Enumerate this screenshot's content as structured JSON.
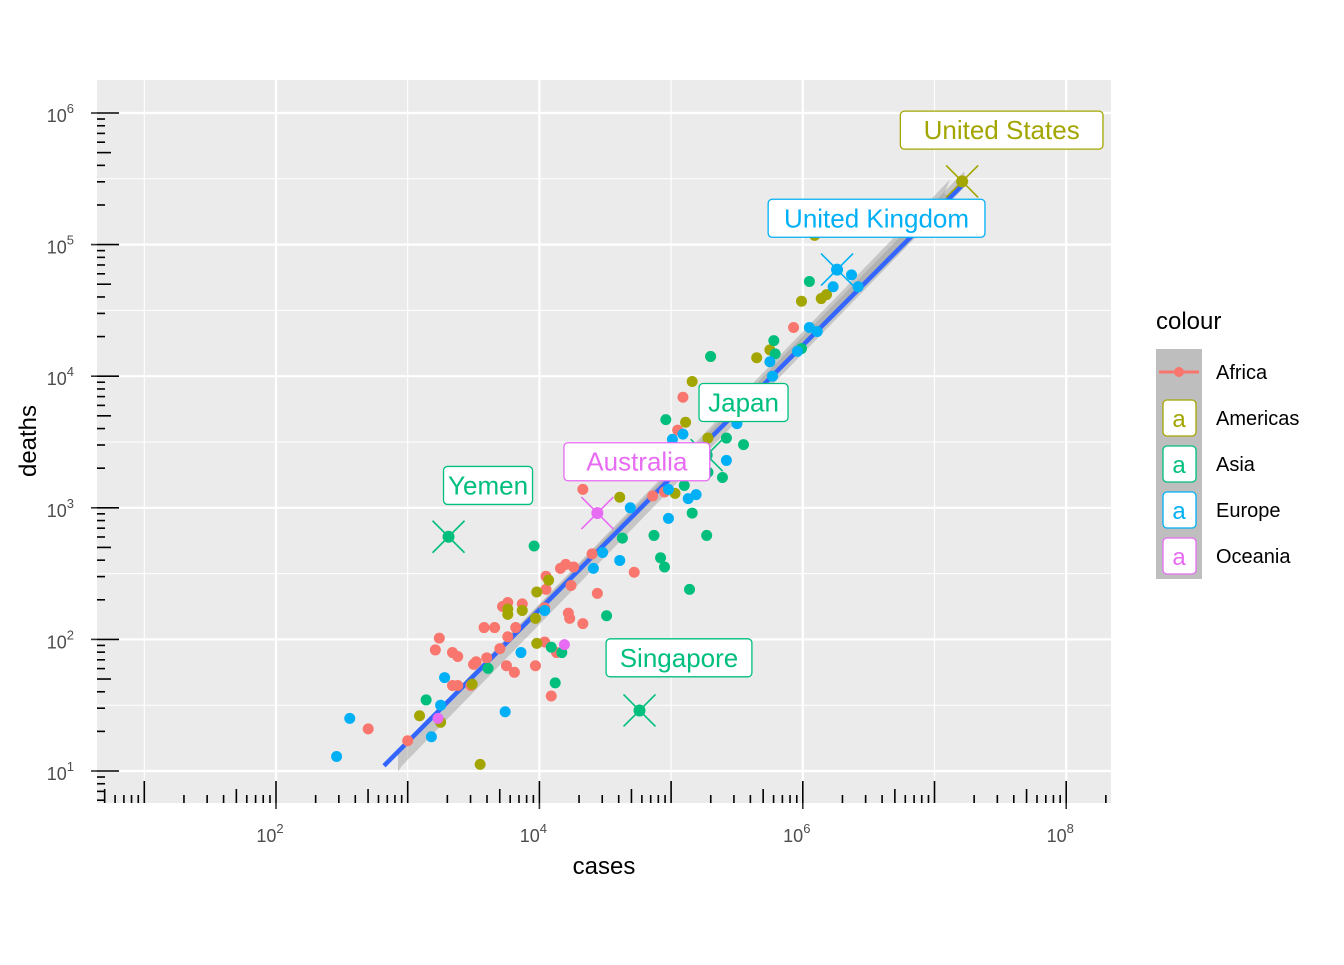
{
  "chart_data": {
    "type": "scatter",
    "xlabel": "cases",
    "ylabel": "deaths",
    "x_scale": "log10",
    "y_scale": "log10",
    "xlim_log10": [
      0.64,
      8.34
    ],
    "ylim_log10": [
      0.76,
      6.25
    ],
    "x_tick_labels": [
      {
        "base": "10",
        "exp": "2",
        "log": 2
      },
      {
        "base": "10",
        "exp": "4",
        "log": 4
      },
      {
        "base": "10",
        "exp": "6",
        "log": 6
      },
      {
        "base": "10",
        "exp": "8",
        "log": 8
      }
    ],
    "y_tick_labels": [
      {
        "base": "10",
        "exp": "1",
        "log": 1
      },
      {
        "base": "10",
        "exp": "2",
        "log": 2
      },
      {
        "base": "10",
        "exp": "3",
        "log": 3
      },
      {
        "base": "10",
        "exp": "4",
        "log": 4
      },
      {
        "base": "10",
        "exp": "5",
        "log": 5
      },
      {
        "base": "10",
        "exp": "6",
        "log": 6
      }
    ],
    "grid": true,
    "legend": {
      "title": "colour",
      "placement": "right",
      "key_letter": "a",
      "entries": [
        {
          "name": "Africa",
          "color": "#F8766D"
        },
        {
          "name": "Americas",
          "color": "#A3A500"
        },
        {
          "name": "Asia",
          "color": "#00BF7D"
        },
        {
          "name": "Europe",
          "color": "#00B0F6"
        },
        {
          "name": "Oceania",
          "color": "#E76BF3"
        }
      ]
    },
    "fit_line": {
      "method": "lm",
      "color": "#3366FF",
      "from_log10": [
        2.82,
        1.04
      ],
      "to_log10": [
        7.21,
        5.45
      ]
    },
    "series": [
      {
        "name": "Africa",
        "points_log10": [
          [
            2.7,
            1.32
          ],
          [
            3.0,
            1.23
          ],
          [
            3.24,
            2.01
          ],
          [
            3.21,
            1.92
          ],
          [
            3.34,
            1.9
          ],
          [
            3.38,
            1.87
          ],
          [
            3.34,
            1.65
          ],
          [
            3.38,
            1.65
          ],
          [
            3.48,
            1.65
          ],
          [
            3.5,
            1.81
          ],
          [
            3.52,
            1.83
          ],
          [
            3.58,
            2.09
          ],
          [
            3.66,
            2.09
          ],
          [
            3.6,
            1.86
          ],
          [
            3.7,
            1.93
          ],
          [
            3.75,
            1.8
          ],
          [
            3.81,
            1.75
          ],
          [
            3.76,
            2.02
          ],
          [
            3.82,
            2.09
          ],
          [
            3.87,
            2.27
          ],
          [
            3.76,
            2.28
          ],
          [
            3.72,
            2.25
          ],
          [
            3.97,
            1.8
          ],
          [
            4.04,
            2.24
          ],
          [
            4.05,
            2.38
          ],
          [
            4.05,
            2.48
          ],
          [
            4.04,
            1.98
          ],
          [
            4.09,
            1.57
          ],
          [
            4.16,
            2.54
          ],
          [
            4.2,
            2.57
          ],
          [
            4.26,
            2.55
          ],
          [
            4.24,
            2.41
          ],
          [
            4.22,
            2.2
          ],
          [
            4.23,
            2.16
          ],
          [
            4.13,
            1.9
          ],
          [
            4.33,
            3.14
          ],
          [
            4.33,
            2.12
          ],
          [
            4.44,
            2.35
          ],
          [
            4.4,
            2.65
          ],
          [
            4.72,
            2.51
          ],
          [
            4.86,
            3.09
          ],
          [
            4.95,
            3.12
          ],
          [
            5.05,
            3.59
          ],
          [
            5.09,
            3.84
          ],
          [
            5.93,
            4.37
          ]
        ]
      },
      {
        "name": "Americas",
        "points_log10": [
          [
            7.21,
            5.48
          ],
          [
            3.09,
            1.42
          ],
          [
            3.25,
            1.37
          ],
          [
            3.55,
            1.05
          ],
          [
            3.49,
            1.66
          ],
          [
            3.76,
            2.19
          ],
          [
            3.76,
            2.23
          ],
          [
            3.87,
            2.22
          ],
          [
            3.97,
            2.16
          ],
          [
            3.98,
            2.36
          ],
          [
            4.07,
            2.45
          ],
          [
            3.98,
            1.97
          ],
          [
            4.61,
            3.08
          ],
          [
            5.03,
            3.11
          ],
          [
            5.11,
            3.65
          ],
          [
            5.16,
            3.96
          ],
          [
            5.28,
            3.53
          ],
          [
            5.3,
            4.15
          ],
          [
            5.65,
            4.14
          ],
          [
            5.75,
            4.2
          ],
          [
            5.99,
            4.57
          ],
          [
            6.09,
            5.07
          ],
          [
            6.14,
            4.59
          ],
          [
            6.18,
            4.62
          ]
        ]
      },
      {
        "name": "Asia",
        "points_log10": [
          [
            3.31,
            2.78
          ],
          [
            4.76,
            1.46
          ],
          [
            5.27,
            3.4
          ],
          [
            3.14,
            1.54
          ],
          [
            3.61,
            1.78
          ],
          [
            3.96,
            2.71
          ],
          [
            4.09,
            1.94
          ],
          [
            4.12,
            1.67
          ],
          [
            4.17,
            1.9
          ],
          [
            4.51,
            2.18
          ],
          [
            4.63,
            2.77
          ],
          [
            4.87,
            2.79
          ],
          [
            4.92,
            2.62
          ],
          [
            4.95,
            2.55
          ],
          [
            4.96,
            3.67
          ],
          [
            5.1,
            3.17
          ],
          [
            5.14,
            2.38
          ],
          [
            5.16,
            2.96
          ],
          [
            5.27,
            2.79
          ],
          [
            5.28,
            3.27
          ],
          [
            5.3,
            4.15
          ],
          [
            5.39,
            3.23
          ],
          [
            5.42,
            3.53
          ],
          [
            5.55,
            3.48
          ],
          [
            5.78,
            4.27
          ],
          [
            5.79,
            4.17
          ],
          [
            5.99,
            4.21
          ],
          [
            6.05,
            4.72
          ]
        ]
      },
      {
        "name": "Europe",
        "points_log10": [
          [
            2.46,
            1.11
          ],
          [
            2.56,
            1.4
          ],
          [
            3.18,
            1.26
          ],
          [
            3.28,
            1.71
          ],
          [
            3.25,
            1.5
          ],
          [
            3.74,
            1.45
          ],
          [
            3.86,
            1.9
          ],
          [
            4.04,
            2.22
          ],
          [
            4.41,
            2.54
          ],
          [
            4.48,
            2.66
          ],
          [
            4.61,
            2.6
          ],
          [
            4.69,
            3.0
          ],
          [
            4.98,
            2.92
          ],
          [
            4.98,
            3.14
          ],
          [
            5.01,
            3.52
          ],
          [
            5.09,
            3.56
          ],
          [
            5.19,
            3.1
          ],
          [
            5.13,
            3.07
          ],
          [
            5.42,
            3.36
          ],
          [
            5.5,
            3.64
          ],
          [
            5.75,
            4.11
          ],
          [
            5.77,
            4.0
          ],
          [
            5.96,
            4.19
          ],
          [
            6.05,
            4.37
          ],
          [
            6.11,
            4.34
          ],
          [
            6.23,
            4.68
          ],
          [
            6.26,
            4.81
          ],
          [
            6.37,
            4.77
          ],
          [
            6.42,
            4.68
          ]
        ]
      },
      {
        "name": "Oceania",
        "points_log10": [
          [
            4.44,
            2.96
          ],
          [
            4.19,
            1.96
          ],
          [
            3.23,
            1.4
          ]
        ]
      }
    ],
    "annotations": [
      {
        "text": "United States",
        "series": "Americas",
        "point_log10": [
          7.21,
          5.48
        ],
        "label_log10": [
          7.51,
          5.87
        ]
      },
      {
        "text": "United Kingdom",
        "series": "Europe",
        "point_log10": [
          6.26,
          4.81
        ],
        "label_log10": [
          6.56,
          5.2
        ]
      },
      {
        "text": "Japan",
        "series": "Asia",
        "point_log10": [
          5.27,
          3.4
        ],
        "label_log10": [
          5.55,
          3.8
        ]
      },
      {
        "text": "Australia",
        "series": "Oceania",
        "point_log10": [
          4.44,
          2.96
        ],
        "label_log10": [
          4.74,
          3.35
        ]
      },
      {
        "text": "Yemen",
        "series": "Asia",
        "point_log10": [
          3.31,
          2.78
        ],
        "label_log10": [
          3.61,
          3.17
        ]
      },
      {
        "text": "Singapore",
        "series": "Asia",
        "point_log10": [
          4.76,
          1.46
        ],
        "label_log10": [
          5.06,
          1.86
        ]
      }
    ]
  }
}
